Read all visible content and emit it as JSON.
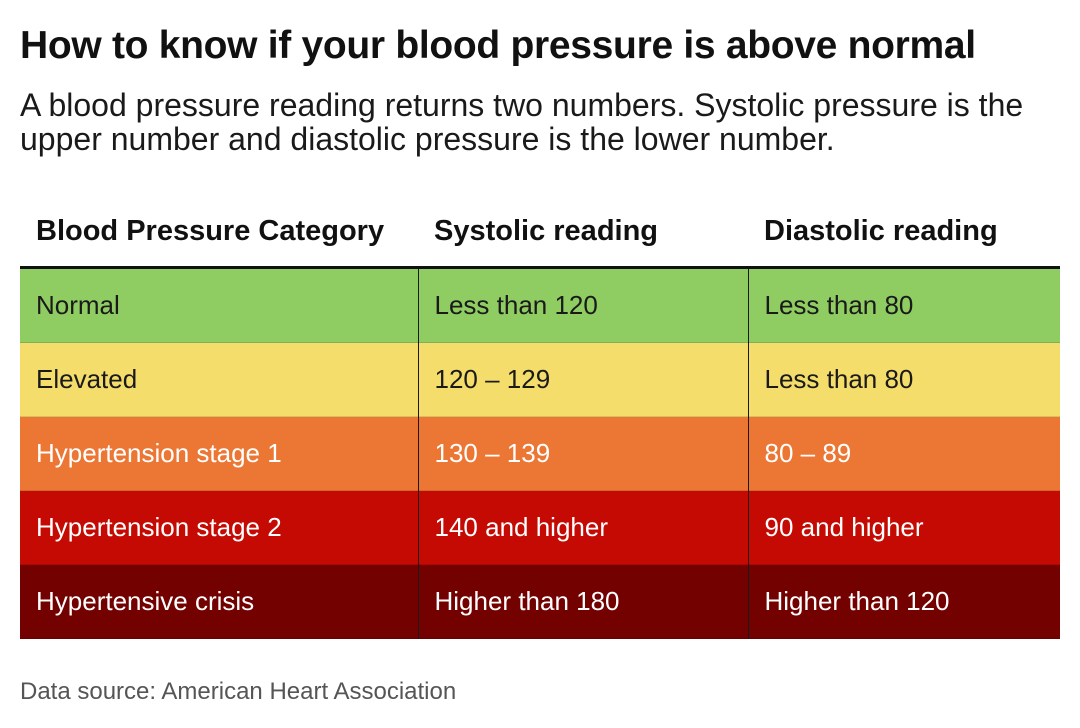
{
  "title": "How to know if your blood pressure is above normal",
  "subtitle": "A blood pressure reading returns two numbers. Systolic pressure is the upper number and diastolic pressure is the lower number.",
  "source": "Data source: American Heart Association",
  "chart_data": {
    "type": "table",
    "columns": [
      "Blood Pressure Category",
      "Systolic reading",
      "Diastolic reading"
    ],
    "rows": [
      {
        "cells": [
          "Normal",
          "Less than 120",
          "Less than 80"
        ],
        "background": "#8fcc62",
        "text_color": "#1a1a1a"
      },
      {
        "cells": [
          "Elevated",
          "120 – 129",
          "Less than 80"
        ],
        "background": "#f4dd6a",
        "text_color": "#1a1a1a"
      },
      {
        "cells": [
          "Hypertension stage 1",
          "130 – 139",
          "80 – 89"
        ],
        "background": "#ec7734",
        "text_color": "#ffffff"
      },
      {
        "cells": [
          "Hypertension stage 2",
          "140 and higher",
          "90 and higher"
        ],
        "background": "#c40a02",
        "text_color": "#ffffff"
      },
      {
        "cells": [
          "Hypertensive crisis",
          "Higher than 180",
          "Higher than 120"
        ],
        "background": "#730100",
        "text_color": "#ffffff"
      }
    ]
  }
}
